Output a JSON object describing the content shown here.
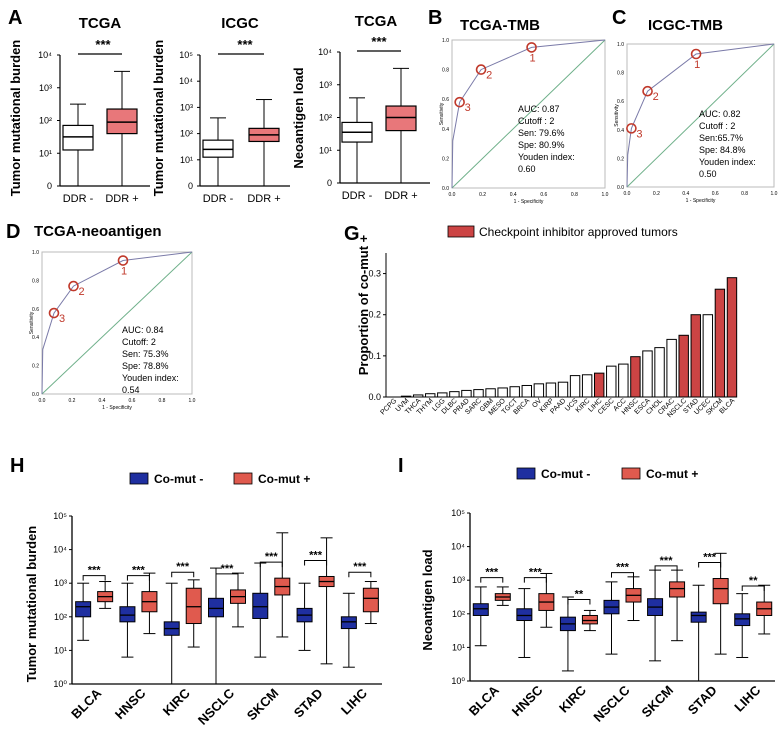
{
  "panels": {
    "A": {
      "label": "A",
      "plots": [
        {
          "title": "TCGA",
          "ylabel": "Tumor mutational burden",
          "sig": "***",
          "yticks": [
            "10⁴",
            "10³",
            "10²",
            "10¹",
            "0"
          ],
          "groups": [
            {
              "name": "DDR -",
              "color": "#ffffff",
              "min": 0.0,
              "q1": 1.1,
              "median": 1.5,
              "q3": 1.85,
              "max": 2.5
            },
            {
              "name": "DDR +",
              "color": "#e8777a",
              "min": 0.0,
              "q1": 1.6,
              "median": 1.95,
              "q3": 2.35,
              "max": 3.5
            }
          ]
        },
        {
          "title": "ICGC",
          "ylabel": "Tumor mutational burden",
          "sig": "***",
          "yticks": [
            "10⁵",
            "10⁴",
            "10³",
            "10²",
            "10¹",
            "0"
          ],
          "groups": [
            {
              "name": "DDR -",
              "color": "#ffffff",
              "min": 0.0,
              "q1": 1.1,
              "median": 1.4,
              "q3": 1.75,
              "max": 2.6
            },
            {
              "name": "DDR +",
              "color": "#e8777a",
              "min": 0.0,
              "q1": 1.7,
              "median": 1.95,
              "q3": 2.2,
              "max": 3.3
            }
          ]
        },
        {
          "title": "TCGA",
          "ylabel": "Neoantigen load",
          "sig": "***",
          "yticks": [
            "10⁴",
            "10³",
            "10²",
            "10¹",
            "0"
          ],
          "groups": [
            {
              "name": "DDR -",
              "color": "#ffffff",
              "min": 0.0,
              "q1": 1.25,
              "median": 1.55,
              "q3": 1.85,
              "max": 2.6
            },
            {
              "name": "DDR +",
              "color": "#e8777a",
              "min": 0.0,
              "q1": 1.6,
              "median": 2.0,
              "q3": 2.35,
              "max": 3.5
            }
          ]
        }
      ]
    },
    "B": {
      "label": "B",
      "title": "TCGA-TMB",
      "auc": "AUC: 0.87",
      "cutoff": "Cutoff : 2",
      "sen": "Sen: 79.6%",
      "spe": "Spe: 80.9%",
      "youden": "Youden index:",
      "youden_val": "0.60",
      "ylabel": "Sensitivity",
      "xlabel": "1 - Specificity",
      "points": [
        {
          "label": "1",
          "fpr": 0.52,
          "tpr": 0.95
        },
        {
          "label": "2",
          "fpr": 0.19,
          "tpr": 0.8
        },
        {
          "label": "3",
          "fpr": 0.05,
          "tpr": 0.58
        }
      ]
    },
    "C": {
      "label": "C",
      "title": "ICGC-TMB",
      "auc": "AUC: 0.82",
      "cutoff": "Cutoff : 2",
      "sen": "Sen:65.7%",
      "spe": "Spe: 84.8%",
      "youden": "Youden index:",
      "youden_val": "0.50",
      "ylabel": "Sensitivity",
      "xlabel": "1 - Specificity",
      "points": [
        {
          "label": "1",
          "fpr": 0.47,
          "tpr": 0.93
        },
        {
          "label": "2",
          "fpr": 0.14,
          "tpr": 0.67
        },
        {
          "label": "3",
          "fpr": 0.03,
          "tpr": 0.41
        }
      ]
    },
    "D": {
      "label": "D",
      "title": "TCGA-neoantigen",
      "auc": "AUC: 0.84",
      "cutoff": "Cutoff: 2",
      "sen": "Sen: 75.3%",
      "spe": "Spe: 78.8%",
      "youden": "Youden index:",
      "youden_val": "0.54",
      "ylabel": "Sensitivity",
      "xlabel": "1 - Specificity",
      "points": [
        {
          "label": "1",
          "fpr": 0.54,
          "tpr": 0.94
        },
        {
          "label": "2",
          "fpr": 0.21,
          "tpr": 0.76
        },
        {
          "label": "3",
          "fpr": 0.08,
          "tpr": 0.57
        }
      ]
    },
    "G": {
      "label": "G",
      "ylabel": "Proportion of co-mut +",
      "legend": "Checkpoint inhibitor approved tumors",
      "yticks": [
        "0.3",
        "0.2",
        "0.1",
        "0.0"
      ]
    },
    "H": {
      "label": "H",
      "ylabel": "Tumor mutational burden",
      "legend_neg": "Co-mut -",
      "legend_pos": "Co-mut +",
      "yticks": [
        "10⁵",
        "10⁴",
        "10³",
        "10²",
        "10¹",
        "10⁰"
      ]
    },
    "I": {
      "label": "I",
      "ylabel": "Neoantigen load",
      "legend_neg": "Co-mut -",
      "legend_pos": "Co-mut +",
      "yticks": [
        "10⁵",
        "10⁴",
        "10³",
        "10²",
        "10¹",
        "10⁰"
      ]
    }
  },
  "chart_data": [
    {
      "type": "bar",
      "panel": "G",
      "title": "",
      "ylabel": "Proportion of co-mut +",
      "ylim": [
        0,
        0.35
      ],
      "categories": [
        "PCPG",
        "UVM",
        "THCA",
        "THYM",
        "LGG",
        "DLBC",
        "PRAD",
        "SARC",
        "GBM",
        "MESO",
        "TGCT",
        "BRCA",
        "OV",
        "KIRP",
        "PAAD",
        "UCS",
        "KIRC",
        "LIHC",
        "CESC",
        "ACC",
        "HNSC",
        "ESCA",
        "CHOL",
        "CRAC",
        "NSCLC",
        "STAD",
        "UCEC",
        "SKCM",
        "BLCA"
      ],
      "values": [
        0.0,
        0.002,
        0.005,
        0.008,
        0.01,
        0.013,
        0.016,
        0.018,
        0.02,
        0.022,
        0.025,
        0.028,
        0.032,
        0.034,
        0.036,
        0.052,
        0.054,
        0.058,
        0.075,
        0.08,
        0.098,
        0.112,
        0.12,
        0.14,
        0.15,
        0.2,
        0.2,
        0.262,
        0.29
      ],
      "approved": [
        false,
        false,
        false,
        false,
        false,
        false,
        false,
        false,
        false,
        false,
        false,
        false,
        false,
        false,
        false,
        false,
        false,
        true,
        false,
        false,
        true,
        false,
        false,
        false,
        true,
        true,
        false,
        true,
        true
      ]
    },
    {
      "type": "box",
      "panel": "H",
      "ylabel": "Tumor mutational burden",
      "scale": "log10",
      "categories": [
        "BLCA",
        "HNSC",
        "KIRC",
        "NSCLC",
        "SKCM",
        "STAD",
        "LIHC"
      ],
      "sig": [
        "***",
        "***",
        "***",
        "***",
        "***",
        "***",
        "***"
      ],
      "series": [
        {
          "name": "Co-mut -",
          "color": "#1f2fa0",
          "boxes": [
            {
              "min": 1.3,
              "q1": 2.0,
              "median": 2.3,
              "q3": 2.45,
              "max": 3.0
            },
            {
              "min": 0.8,
              "q1": 1.85,
              "median": 2.05,
              "q3": 2.3,
              "max": 3.0
            },
            {
              "min": 0.0,
              "q1": 1.45,
              "median": 1.65,
              "q3": 1.85,
              "max": 3.0
            },
            {
              "min": 0.0,
              "q1": 2.0,
              "median": 2.25,
              "q3": 2.55,
              "max": 3.45
            },
            {
              "min": 0.8,
              "q1": 1.95,
              "median": 2.3,
              "q3": 2.7,
              "max": 3.6
            },
            {
              "min": 1.0,
              "q1": 1.85,
              "median": 2.05,
              "q3": 2.25,
              "max": 3.0
            },
            {
              "min": 0.5,
              "q1": 1.65,
              "median": 1.85,
              "q3": 2.0,
              "max": 2.7
            }
          ]
        },
        {
          "name": "Co-mut +",
          "color": "#e05a4e",
          "boxes": [
            {
              "min": 2.25,
              "q1": 2.45,
              "median": 2.6,
              "q3": 2.75,
              "max": 3.05
            },
            {
              "min": 1.5,
              "q1": 2.15,
              "median": 2.45,
              "q3": 2.75,
              "max": 3.3
            },
            {
              "min": 1.1,
              "q1": 1.8,
              "median": 2.3,
              "q3": 2.85,
              "max": 3.1
            },
            {
              "min": 1.7,
              "q1": 2.4,
              "median": 2.6,
              "q3": 2.8,
              "max": 3.3
            },
            {
              "min": 1.4,
              "q1": 2.65,
              "median": 2.9,
              "q3": 3.15,
              "max": 4.5
            },
            {
              "min": 0.6,
              "q1": 2.9,
              "median": 3.05,
              "q3": 3.2,
              "max": 4.35
            },
            {
              "min": 1.8,
              "q1": 2.15,
              "median": 2.55,
              "q3": 2.85,
              "max": 3.05
            }
          ]
        }
      ]
    },
    {
      "type": "box",
      "panel": "I",
      "ylabel": "Neoantigen load",
      "scale": "log10",
      "categories": [
        "BLCA",
        "HNSC",
        "KIRC",
        "NSCLC",
        "SKCM",
        "STAD",
        "LIHC"
      ],
      "sig": [
        "***",
        "***",
        "**",
        "***",
        "***",
        "***",
        "**"
      ],
      "series": [
        {
          "name": "Co-mut -",
          "color": "#1f2fa0",
          "boxes": [
            {
              "min": 1.05,
              "q1": 1.95,
              "median": 2.15,
              "q3": 2.3,
              "max": 2.8
            },
            {
              "min": 0.7,
              "q1": 1.8,
              "median": 1.95,
              "q3": 2.15,
              "max": 2.75
            },
            {
              "min": 0.3,
              "q1": 1.5,
              "median": 1.7,
              "q3": 1.9,
              "max": 2.5
            },
            {
              "min": 0.8,
              "q1": 2.0,
              "median": 2.2,
              "q3": 2.4,
              "max": 2.95
            },
            {
              "min": 0.6,
              "q1": 1.95,
              "median": 2.2,
              "q3": 2.45,
              "max": 3.3
            },
            {
              "min": 0.0,
              "q1": 1.75,
              "median": 1.95,
              "q3": 2.05,
              "max": 2.85
            },
            {
              "min": 0.7,
              "q1": 1.65,
              "median": 1.85,
              "q3": 2.0,
              "max": 2.6
            }
          ]
        },
        {
          "name": "Co-mut +",
          "color": "#e05a4e",
          "boxes": [
            {
              "min": 2.25,
              "q1": 2.4,
              "median": 2.5,
              "q3": 2.6,
              "max": 2.8
            },
            {
              "min": 1.6,
              "q1": 2.1,
              "median": 2.35,
              "q3": 2.6,
              "max": 3.2
            },
            {
              "min": 1.5,
              "q1": 1.7,
              "median": 1.8,
              "q3": 1.95,
              "max": 2.1
            },
            {
              "min": 1.8,
              "q1": 2.35,
              "median": 2.55,
              "q3": 2.75,
              "max": 3.1
            },
            {
              "min": 1.2,
              "q1": 2.5,
              "median": 2.75,
              "q3": 2.95,
              "max": 3.3
            },
            {
              "min": 0.8,
              "q1": 2.3,
              "median": 2.75,
              "q3": 3.05,
              "max": 3.8
            },
            {
              "min": 1.4,
              "q1": 1.95,
              "median": 2.15,
              "q3": 2.35,
              "max": 2.85
            }
          ]
        }
      ]
    }
  ]
}
